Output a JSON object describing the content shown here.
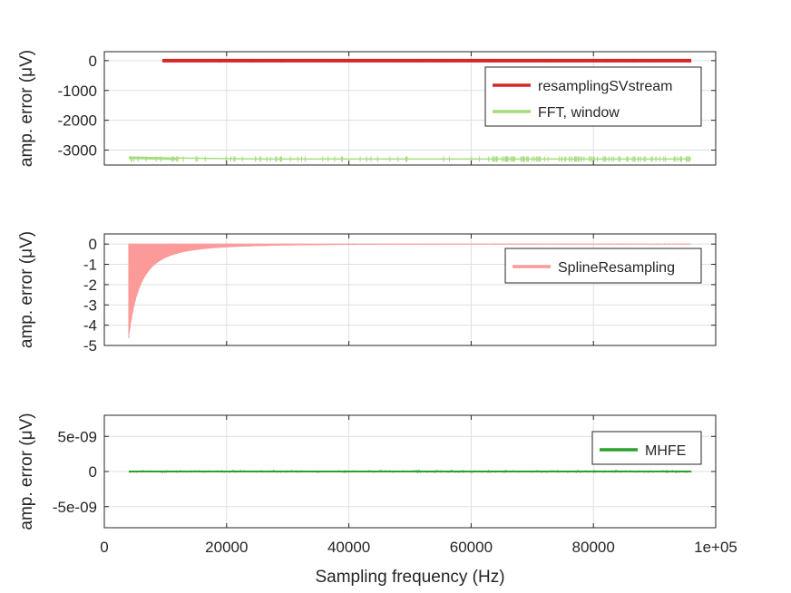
{
  "colors": {
    "resamplingSVstream": "#d62728",
    "fft_window": "#a6dc80",
    "spline": "#fb9a99",
    "mhfe": "#2ca02c",
    "grid": "#dfdfdf",
    "axis": "#262626"
  },
  "chart_data": [
    {
      "type": "line",
      "ylabel": "amp. error (μV)",
      "xlim": [
        0,
        100000
      ],
      "ylim": [
        -3500,
        300
      ],
      "yticks": [
        0,
        -1000,
        -2000,
        -3000
      ],
      "ytick_labels": [
        "0",
        "-1000",
        "-2000",
        "-3000"
      ],
      "grid": true,
      "legend_placement": "right",
      "series": [
        {
          "name": "resamplingSVstream",
          "x_range": [
            9500,
            96000
          ],
          "y_center": 0,
          "y_spread": [
            -60,
            60
          ]
        },
        {
          "name": "FFT, window",
          "x_range": [
            4000,
            96000
          ],
          "y_start": -3250,
          "y_end": -3300,
          "y_spread": [
            -3330,
            -3270
          ]
        }
      ]
    },
    {
      "type": "area",
      "ylabel": "amp. error (μV)",
      "xlim": [
        0,
        100000
      ],
      "ylim": [
        -5,
        0.5
      ],
      "yticks": [
        0,
        -1,
        -2,
        -3,
        -4,
        -5
      ],
      "ytick_labels": [
        "0",
        "-1",
        "-2",
        "-3",
        "-4",
        "-5"
      ],
      "grid": true,
      "legend_placement": "right",
      "series": [
        {
          "name": "SplineResampling",
          "x_range": [
            4000,
            96000
          ],
          "y_min_at_start": -4.65,
          "y_max": 0
        }
      ]
    },
    {
      "type": "line",
      "ylabel": "amp. error (μV)",
      "xlabel": "Sampling frequency (Hz)",
      "xlim": [
        0,
        100000
      ],
      "ylim": [
        -8e-09,
        8e-09
      ],
      "xticks": [
        0,
        20000,
        40000,
        60000,
        80000,
        100000
      ],
      "xtick_labels": [
        "0",
        "20000",
        "40000",
        "60000",
        "80000",
        "1e+05"
      ],
      "yticks": [
        5e-09,
        0,
        -5e-09
      ],
      "ytick_labels": [
        "5e-09",
        "0",
        "-5e-09"
      ],
      "grid": true,
      "legend_placement": "right",
      "series": [
        {
          "name": "MHFE",
          "x_range": [
            4000,
            96000
          ],
          "y_center": 0,
          "y_spread": [
            -2e-10,
            2e-10
          ]
        }
      ]
    }
  ]
}
